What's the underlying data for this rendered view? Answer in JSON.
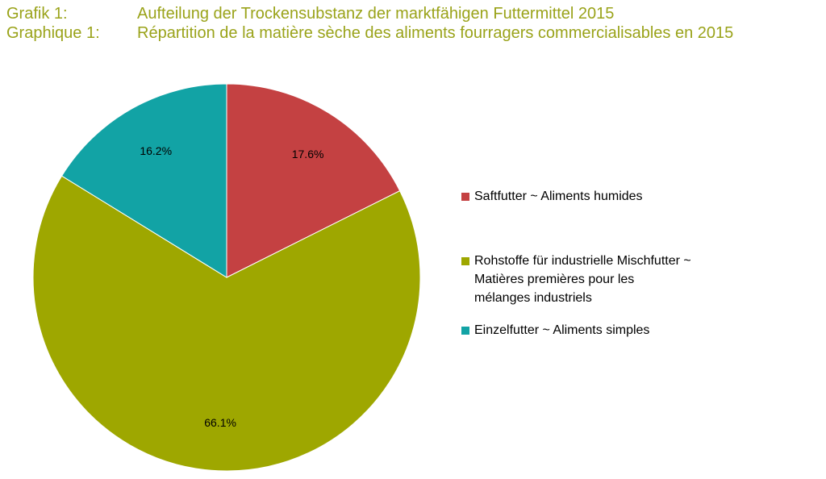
{
  "title": {
    "de_label": "Grafik 1:",
    "de_text": "Aufteilung der Trockensubstanz der marktfähigen Futtermittel 2015",
    "fr_label": "Graphique 1:",
    "fr_text": "Répartition de la matière sèche des aliments fourragers commercialisables en 2015",
    "color": "#9aa31a"
  },
  "chart_data": {
    "type": "pie",
    "title": "Aufteilung der Trockensubstanz der marktfähigen Futtermittel 2015 / Répartition de la matière sèche des aliments fourragers commercialisables en 2015",
    "slices": [
      {
        "name": "Saftfutter ~ Aliments humides",
        "legend_lines": [
          "Saftfutter ~ Aliments humides"
        ],
        "value": 17.6,
        "label": "17.6%",
        "color": "#c44142"
      },
      {
        "name": "Rohstoffe für industrielle Mischfutter ~ Matières premières pour les mélanges industriels",
        "legend_lines": [
          "Rohstoffe für industrielle Mischfutter ~",
          "Matières premières pour les",
          "mélanges industriels"
        ],
        "value": 66.1,
        "label": "66.1%",
        "color": "#9ea700"
      },
      {
        "name": "Einzelfutter ~ Aliments simples",
        "legend_lines": [
          "Einzelfutter ~ Aliments simples"
        ],
        "value": 16.2,
        "label": "16.2%",
        "color": "#12a3a5"
      }
    ],
    "legend_position": "right",
    "start": "top",
    "direction": "clockwise"
  }
}
